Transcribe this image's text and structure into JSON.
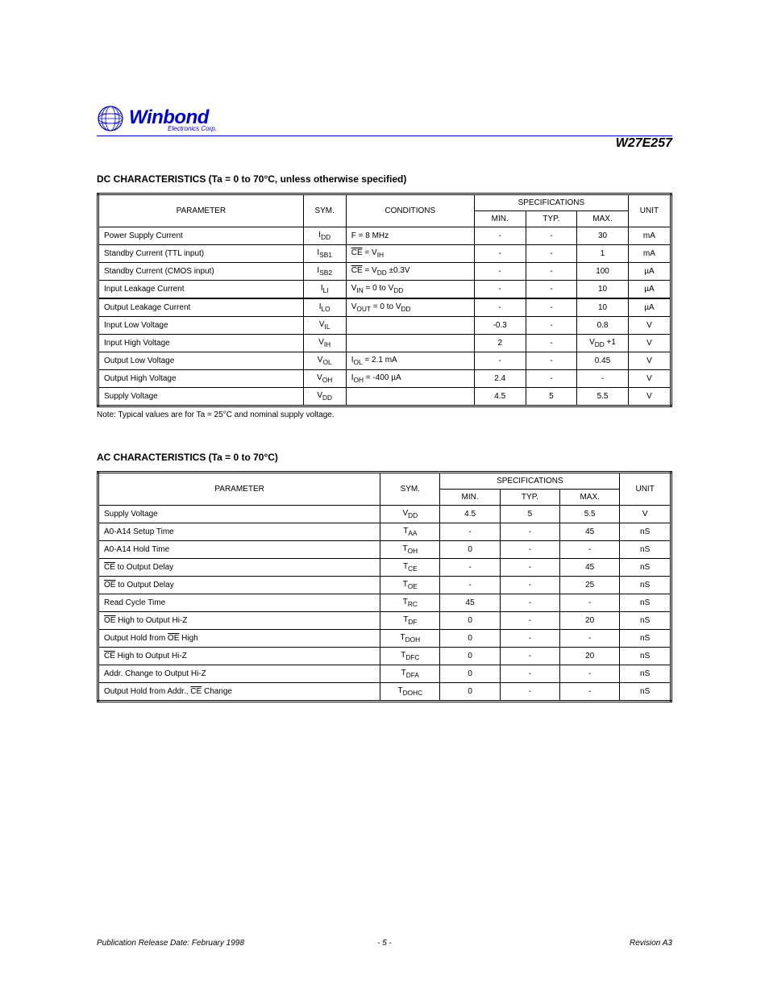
{
  "header": {
    "brand": "Winbond",
    "subbrand": "Electronics Corp.",
    "part": "W27E257"
  },
  "dc": {
    "title": "DC CHARACTERISTICS (Ta = 0 to 70°C, unless otherwise specified)",
    "columns": {
      "param": "PARAMETER",
      "sym": "SYM.",
      "cond": "CONDITIONS",
      "spec": "SPECIFICATIONS",
      "min": "MIN.",
      "typ": "TYP.",
      "max": "MAX.",
      "unit": "UNIT"
    },
    "rows": [
      {
        "param": "Power Supply Current",
        "sym": "I<sub>DD</sub>",
        "cond": "F = 8 MHz",
        "min": "-",
        "typ": "-",
        "max": "30",
        "unit": "mA"
      },
      {
        "param": "Standby Current (TTL input)",
        "sym": "I<sub>SB1</sub>",
        "cond": "<span class='overbar'>CE</span> = V<sub>IH</sub>",
        "min": "-",
        "typ": "-",
        "max": "1",
        "unit": "mA"
      },
      {
        "param": "Standby Current (CMOS input)",
        "sym": "I<sub>SB2</sub>",
        "cond": "<span class='overbar'>CE</span> = V<sub>DD</sub> ±0.3V",
        "min": "-",
        "typ": "-",
        "max": "100",
        "unit": "µA"
      },
      {
        "param": "Input Leakage Current",
        "sym": "I<sub>LI</sub>",
        "cond": "V<sub>IN</sub> = 0 to V<sub>DD</sub>",
        "min": "-",
        "typ": "-",
        "max": "10",
        "unit": "µA"
      },
      {
        "param": "Output Leakage Current",
        "sym": "I<sub>LO</sub>",
        "cond": "V<sub>OUT</sub> = 0 to V<sub>DD</sub>",
        "min": "-",
        "typ": "-",
        "max": "10",
        "unit": "µA"
      },
      {
        "param": "Input Low Voltage",
        "sym": "V<sub>IL</sub>",
        "cond": "",
        "min": "-0.3",
        "typ": "-",
        "max": "0.8",
        "unit": "V"
      },
      {
        "param": "Input High Voltage",
        "sym": "V<sub>IH</sub>",
        "cond": "",
        "min": "2",
        "typ": "-",
        "max": "V<sub>DD</sub> +1",
        "unit": "V"
      },
      {
        "param": "Output Low Voltage",
        "sym": "V<sub>OL</sub>",
        "cond": "I<sub>OL</sub> = 2.1 mA",
        "min": "-",
        "typ": "-",
        "max": "0.45",
        "unit": "V"
      },
      {
        "param": "Output High Voltage",
        "sym": "V<sub>OH</sub>",
        "cond": "I<sub>OH</sub> = -400 µA",
        "min": "2.4",
        "typ": "-",
        "max": "-",
        "unit": "V"
      },
      {
        "param": "Supply Voltage",
        "sym": "V<sub>DD</sub>",
        "cond": "",
        "min": "4.5",
        "typ": "5",
        "max": "5.5",
        "unit": "V"
      }
    ],
    "note": "Note: Typical values are for Ta = 25°C and nominal supply voltage."
  },
  "ac": {
    "title": "AC CHARACTERISTICS (Ta = 0 to 70°C)",
    "columns": {
      "param": "PARAMETER",
      "sym": "SYM.",
      "spec": "SPECIFICATIONS",
      "min": "MIN.",
      "typ": "TYP.",
      "max": "MAX.",
      "unit": "UNIT"
    },
    "rows": [
      {
        "param": "Supply Voltage",
        "sym": "V<sub>DD</sub>",
        "min": "4.5",
        "typ": "5",
        "max": "5.5",
        "unit": "V"
      },
      {
        "param": "A0-A14 Setup Time",
        "sym": "T<sub>AA</sub>",
        "min": "-",
        "typ": "-",
        "max": "45",
        "unit": "nS"
      },
      {
        "param": "A0-A14 Hold Time",
        "sym": "T<sub>OH</sub>",
        "min": "0",
        "typ": "-",
        "max": "-",
        "unit": "nS"
      },
      {
        "param": "<span class='overbar'>CE</span> to Output Delay",
        "sym": "T<sub>CE</sub>",
        "min": "-",
        "typ": "-",
        "max": "45",
        "unit": "nS"
      },
      {
        "param": "<span class='overbar'>OE</span> to Output Delay",
        "sym": "T<sub>OE</sub>",
        "min": "-",
        "typ": "-",
        "max": "25",
        "unit": "nS"
      },
      {
        "param": "Read Cycle Time",
        "sym": "T<sub>RC</sub>",
        "min": "45",
        "typ": "-",
        "max": "-",
        "unit": "nS"
      },
      {
        "param": "<span class='overbar'>OE</span> High to Output Hi-Z",
        "sym": "T<sub>DF</sub>",
        "min": "0",
        "typ": "-",
        "max": "20",
        "unit": "nS"
      },
      {
        "param": "Output Hold from <span class='overbar'>OE</span> High",
        "sym": "T<sub>DOH</sub>",
        "min": "0",
        "typ": "-",
        "max": "-",
        "unit": "nS"
      },
      {
        "param": "<span class='overbar'>CE</span> High to Output Hi-Z",
        "sym": "T<sub>DFC</sub>",
        "min": "0",
        "typ": "-",
        "max": "20",
        "unit": "nS"
      },
      {
        "param": "Addr. Change to Output Hi-Z",
        "sym": "T<sub>DFA</sub>",
        "min": "0",
        "typ": "-",
        "max": "-",
        "unit": "nS"
      },
      {
        "param": "Output Hold from Addr., <span class='overbar'>CE</span> Change",
        "sym": "T<sub>DOHC</sub>",
        "min": "0",
        "typ": "-",
        "max": "-",
        "unit": "nS"
      }
    ]
  },
  "footer": {
    "left": "Publication Release Date: February 1998",
    "center": "- 5 -",
    "right": "Revision A3"
  }
}
